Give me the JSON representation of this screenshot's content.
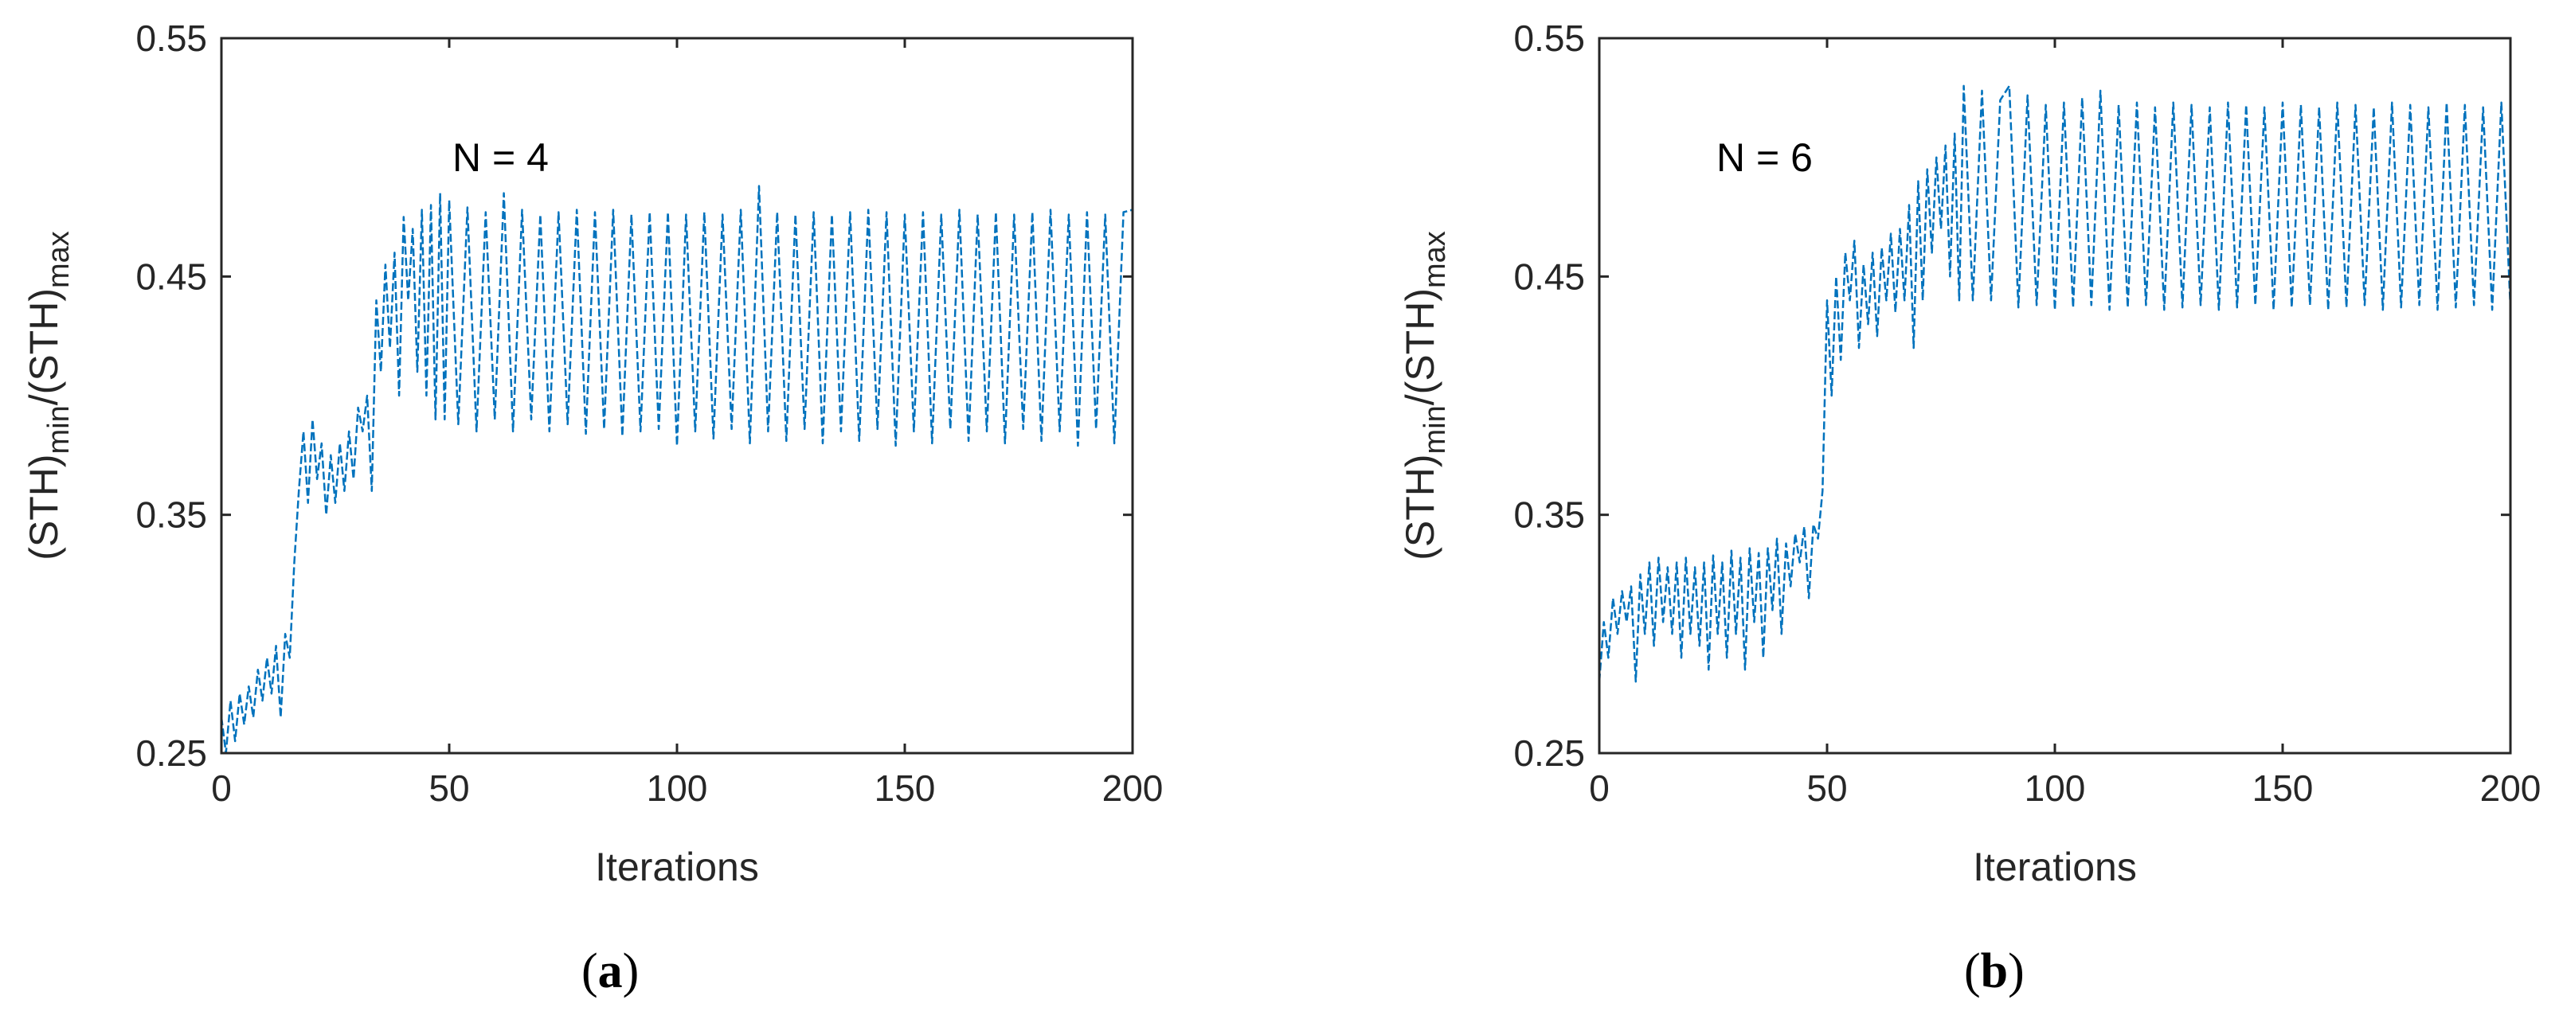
{
  "colors": {
    "series": "#0072BD",
    "axis": "#262626",
    "background": "#ffffff"
  },
  "chart_data": [
    {
      "type": "line",
      "panel": "a",
      "panel_label_pre": "(",
      "panel_label_letter": "a",
      "panel_label_post": ")",
      "annotation": "N = 4",
      "xlabel": "Iterations",
      "ylabel": {
        "prefix": "(STH)",
        "sub1": "min",
        "mid": "/(STH)",
        "sub2": "max"
      },
      "xlim": [
        0,
        200
      ],
      "ylim": [
        0.25,
        0.55
      ],
      "xticks": [
        0,
        50,
        100,
        150,
        200
      ],
      "xtick_labels": [
        "0",
        "50",
        "100",
        "150",
        "200"
      ],
      "yticks": [
        0.25,
        0.35,
        0.45,
        0.55
      ],
      "ytick_labels": [
        "0.25",
        "0.35",
        "0.45",
        "0.55"
      ],
      "grid": false,
      "series": [
        {
          "x": [
            0,
            1,
            2,
            3,
            4,
            5,
            6,
            7,
            8,
            9,
            10,
            11,
            12,
            13,
            14,
            15,
            16,
            17,
            18,
            19,
            20,
            21,
            22,
            23,
            24,
            25,
            26,
            27,
            28,
            29,
            30,
            31,
            32,
            33,
            34,
            35,
            36,
            37,
            38,
            39,
            40,
            41,
            42,
            43,
            44,
            45,
            46,
            47,
            48,
            49,
            50,
            52,
            54,
            56,
            58,
            60,
            62,
            64,
            66,
            68,
            70,
            72,
            74,
            76,
            78,
            80,
            82,
            84,
            86,
            88,
            90,
            92,
            94,
            96,
            98,
            100,
            102,
            104,
            106,
            108,
            110,
            112,
            114,
            116,
            118,
            120,
            122,
            124,
            126,
            128,
            130,
            132,
            134,
            136,
            138,
            140,
            142,
            144,
            146,
            148,
            150,
            152,
            154,
            156,
            158,
            160,
            162,
            164,
            166,
            168,
            170,
            172,
            174,
            176,
            178,
            180,
            182,
            184,
            186,
            188,
            190,
            192,
            194,
            196,
            198,
            200
          ],
          "y": [
            0.265,
            0.25,
            0.272,
            0.255,
            0.275,
            0.262,
            0.278,
            0.265,
            0.285,
            0.272,
            0.29,
            0.275,
            0.295,
            0.265,
            0.3,
            0.29,
            0.33,
            0.36,
            0.385,
            0.355,
            0.39,
            0.365,
            0.38,
            0.35,
            0.375,
            0.355,
            0.38,
            0.36,
            0.385,
            0.365,
            0.395,
            0.385,
            0.4,
            0.36,
            0.44,
            0.41,
            0.455,
            0.42,
            0.46,
            0.4,
            0.475,
            0.44,
            0.47,
            0.41,
            0.478,
            0.4,
            0.48,
            0.39,
            0.485,
            0.39,
            0.482,
            0.388,
            0.479,
            0.385,
            0.477,
            0.39,
            0.485,
            0.385,
            0.478,
            0.39,
            0.476,
            0.385,
            0.477,
            0.388,
            0.478,
            0.384,
            0.477,
            0.386,
            0.478,
            0.383,
            0.476,
            0.385,
            0.477,
            0.386,
            0.477,
            0.379,
            0.476,
            0.385,
            0.477,
            0.382,
            0.476,
            0.386,
            0.478,
            0.38,
            0.488,
            0.385,
            0.477,
            0.381,
            0.476,
            0.386,
            0.477,
            0.38,
            0.476,
            0.385,
            0.477,
            0.381,
            0.478,
            0.386,
            0.477,
            0.379,
            0.476,
            0.385,
            0.477,
            0.38,
            0.476,
            0.386,
            0.478,
            0.381,
            0.476,
            0.385,
            0.477,
            0.38,
            0.476,
            0.386,
            0.477,
            0.381,
            0.478,
            0.385,
            0.476,
            0.379,
            0.477,
            0.386,
            0.476,
            0.38,
            0.477,
            0.478
          ]
        }
      ]
    },
    {
      "type": "line",
      "panel": "b",
      "panel_label_pre": "(",
      "panel_label_letter": "b",
      "panel_label_post": ")",
      "annotation": "N = 6",
      "xlabel": "Iterations",
      "ylabel": {
        "prefix": "(STH)",
        "sub1": "min",
        "mid": "/(STH)",
        "sub2": "max"
      },
      "xlim": [
        0,
        200
      ],
      "ylim": [
        0.25,
        0.55
      ],
      "xticks": [
        0,
        50,
        100,
        150,
        200
      ],
      "xtick_labels": [
        "0",
        "50",
        "100",
        "150",
        "200"
      ],
      "yticks": [
        0.25,
        0.35,
        0.45,
        0.55
      ],
      "ytick_labels": [
        "0.25",
        "0.35",
        "0.45",
        "0.55"
      ],
      "grid": false,
      "series": [
        {
          "x": [
            0,
            1,
            2,
            3,
            4,
            5,
            6,
            7,
            8,
            9,
            10,
            11,
            12,
            13,
            14,
            15,
            16,
            17,
            18,
            19,
            20,
            21,
            22,
            23,
            24,
            25,
            26,
            27,
            28,
            29,
            30,
            31,
            32,
            33,
            34,
            35,
            36,
            37,
            38,
            39,
            40,
            41,
            42,
            43,
            44,
            45,
            46,
            47,
            48,
            49,
            50,
            51,
            52,
            53,
            54,
            55,
            56,
            57,
            58,
            59,
            60,
            61,
            62,
            63,
            64,
            65,
            66,
            67,
            68,
            69,
            70,
            71,
            72,
            73,
            74,
            75,
            76,
            77,
            78,
            79,
            80,
            82,
            84,
            86,
            88,
            90,
            92,
            94,
            96,
            98,
            100,
            102,
            104,
            106,
            108,
            110,
            112,
            114,
            116,
            118,
            120,
            122,
            124,
            126,
            128,
            130,
            132,
            134,
            136,
            138,
            140,
            142,
            144,
            146,
            148,
            150,
            152,
            154,
            156,
            158,
            160,
            162,
            164,
            166,
            168,
            170,
            172,
            174,
            176,
            178,
            180,
            182,
            184,
            186,
            188,
            190,
            192,
            194,
            196,
            198,
            200
          ],
          "y": [
            0.28,
            0.305,
            0.29,
            0.315,
            0.3,
            0.318,
            0.305,
            0.32,
            0.28,
            0.325,
            0.3,
            0.33,
            0.295,
            0.332,
            0.305,
            0.328,
            0.3,
            0.33,
            0.29,
            0.332,
            0.3,
            0.328,
            0.295,
            0.33,
            0.285,
            0.333,
            0.3,
            0.33,
            0.29,
            0.335,
            0.3,
            0.332,
            0.285,
            0.336,
            0.305,
            0.334,
            0.29,
            0.336,
            0.31,
            0.34,
            0.3,
            0.338,
            0.32,
            0.342,
            0.33,
            0.345,
            0.315,
            0.346,
            0.34,
            0.36,
            0.44,
            0.4,
            0.45,
            0.415,
            0.46,
            0.44,
            0.465,
            0.42,
            0.455,
            0.43,
            0.46,
            0.425,
            0.462,
            0.44,
            0.468,
            0.435,
            0.47,
            0.44,
            0.48,
            0.42,
            0.49,
            0.44,
            0.495,
            0.46,
            0.5,
            0.47,
            0.505,
            0.45,
            0.51,
            0.44,
            0.53,
            0.44,
            0.528,
            0.44,
            0.524,
            0.53,
            0.437,
            0.526,
            0.438,
            0.522,
            0.436,
            0.523,
            0.437,
            0.525,
            0.438,
            0.528,
            0.436,
            0.522,
            0.437,
            0.523,
            0.438,
            0.521,
            0.436,
            0.523,
            0.437,
            0.522,
            0.438,
            0.521,
            0.436,
            0.523,
            0.437,
            0.522,
            0.438,
            0.521,
            0.436,
            0.523,
            0.437,
            0.522,
            0.438,
            0.521,
            0.436,
            0.523,
            0.437,
            0.522,
            0.438,
            0.521,
            0.436,
            0.523,
            0.437,
            0.522,
            0.438,
            0.521,
            0.436,
            0.523,
            0.437,
            0.522,
            0.438,
            0.521,
            0.436,
            0.523,
            0.437
          ]
        }
      ]
    }
  ]
}
